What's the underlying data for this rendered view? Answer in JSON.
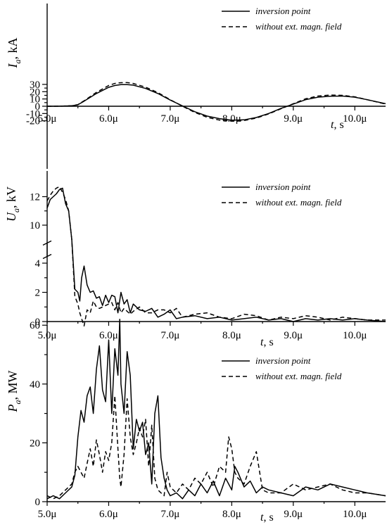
{
  "chart_data": [
    {
      "type": "line",
      "ylabel": "I_a, kA",
      "ylabel_main": "I",
      "ylabel_sub": "a",
      "ylabel_unit": ", kA",
      "xlabel": "t, s",
      "xlabel_italic": "t",
      "xlabel_unit": ", s",
      "x_ticks": [
        "5.0μ",
        "6.0μ",
        "7.0μ",
        "8.0μ",
        "9.0μ",
        "10.0μ"
      ],
      "y_ticks": [
        "-20",
        "-10",
        "0",
        "10",
        "20",
        "30"
      ],
      "xlim": [
        5.0,
        10.5
      ],
      "ylim": [
        -22,
        33
      ],
      "legend_position": "top-right",
      "series": [
        {
          "name": "inversion point",
          "style": "solid",
          "x": [
            5.0,
            5.2,
            5.4,
            5.5,
            5.6,
            5.8,
            6.0,
            6.1,
            6.2,
            6.3,
            6.4,
            6.6,
            6.8,
            7.0,
            7.2,
            7.4,
            7.6,
            7.8,
            8.0,
            8.2,
            8.4,
            8.6,
            8.8,
            9.0,
            9.2,
            9.4,
            9.6,
            9.8,
            10.0,
            10.2,
            10.5
          ],
          "y": [
            0,
            0.1,
            0.6,
            2.0,
            7.0,
            17.5,
            26.0,
            28.5,
            29.8,
            29.7,
            29.0,
            24.5,
            17.5,
            8.5,
            0.5,
            -7.5,
            -13.5,
            -17.0,
            -19.2,
            -18.7,
            -15.5,
            -10.0,
            -3.0,
            3.0,
            9.0,
            12.5,
            13.8,
            14.0,
            12.5,
            9.0,
            3.5
          ]
        },
        {
          "name": "without ext. magn. field",
          "style": "dashed",
          "x": [
            5.0,
            5.2,
            5.4,
            5.5,
            5.6,
            5.8,
            6.0,
            6.1,
            6.2,
            6.3,
            6.4,
            6.6,
            6.8,
            7.0,
            7.2,
            7.4,
            7.6,
            7.8,
            8.0,
            8.2,
            8.4,
            8.6,
            8.8,
            9.0,
            9.2,
            9.4,
            9.6,
            9.8,
            10.0,
            10.2,
            10.5
          ],
          "y": [
            0,
            0.1,
            0.7,
            2.2,
            7.5,
            19.0,
            28.5,
            31.3,
            32.4,
            32.5,
            31.3,
            26.2,
            18.8,
            9.0,
            0.0,
            -8.5,
            -15.2,
            -19.0,
            -20.5,
            -19.6,
            -16.2,
            -10.5,
            -3.5,
            3.5,
            10.2,
            14.0,
            15.4,
            15.0,
            13.0,
            9.0,
            3.0
          ]
        }
      ]
    },
    {
      "type": "line",
      "ylabel": "U_a, kV",
      "ylabel_main": "U",
      "ylabel_sub": "a",
      "ylabel_unit": ", kV",
      "xlabel": "t, s",
      "xlabel_italic": "t",
      "xlabel_unit": ", s",
      "x_ticks": [
        "5.0μ",
        "6.0μ",
        "7.0μ",
        "8.0μ",
        "9.0μ",
        "10.0μ"
      ],
      "y_ticks": [
        "0",
        "2",
        "4",
        "10",
        "12"
      ],
      "y_axis_break": [
        4.6,
        8.6
      ],
      "xlim": [
        5.0,
        10.5
      ],
      "legend_position": "top-right",
      "series": [
        {
          "name": "inversion point",
          "style": "solid",
          "x": [
            5.0,
            5.05,
            5.1,
            5.15,
            5.2,
            5.25,
            5.3,
            5.35,
            5.4,
            5.45,
            5.5,
            5.53,
            5.56,
            5.6,
            5.65,
            5.7,
            5.75,
            5.8,
            5.85,
            5.9,
            5.95,
            6.0,
            6.05,
            6.1,
            6.15,
            6.2,
            6.25,
            6.3,
            6.35,
            6.4,
            6.5,
            6.6,
            6.7,
            6.8,
            6.9,
            7.0,
            7.1,
            7.2,
            7.4,
            7.6,
            7.8,
            8.0,
            8.2,
            8.4,
            8.6,
            8.8,
            9.0,
            9.2,
            9.4,
            9.6,
            9.8,
            10.0,
            10.2,
            10.5
          ],
          "y": [
            11.2,
            11.8,
            12.0,
            12.2,
            12.5,
            12.6,
            11.5,
            11.0,
            9.0,
            5.5,
            2.0,
            1.4,
            3.0,
            3.8,
            2.5,
            2.0,
            2.1,
            1.6,
            1.7,
            1.1,
            1.8,
            1.3,
            1.8,
            1.7,
            0.6,
            2.0,
            1.2,
            1.5,
            0.6,
            1.2,
            0.8,
            0.7,
            0.9,
            0.3,
            0.5,
            0.8,
            0.2,
            0.3,
            0.4,
            0.2,
            0.3,
            0.1,
            0.2,
            0.3,
            0.1,
            0.2,
            0.0,
            0.2,
            0.1,
            0.2,
            0.1,
            0.2,
            0.1,
            0.0
          ]
        },
        {
          "name": "without ext. magn. field",
          "style": "dashed",
          "x": [
            5.0,
            5.05,
            5.1,
            5.15,
            5.2,
            5.25,
            5.3,
            5.35,
            5.4,
            5.45,
            5.5,
            5.53,
            5.56,
            5.6,
            5.65,
            5.7,
            5.75,
            5.8,
            5.85,
            5.9,
            5.95,
            6.0,
            6.05,
            6.1,
            6.15,
            6.2,
            6.25,
            6.3,
            6.35,
            6.4,
            6.5,
            6.6,
            6.7,
            6.8,
            6.9,
            7.0,
            7.1,
            7.2,
            7.4,
            7.6,
            7.8,
            8.0,
            8.2,
            8.4,
            8.6,
            8.8,
            9.0,
            9.2,
            9.4,
            9.6,
            9.8,
            10.0,
            10.2,
            10.5
          ],
          "y": [
            11.7,
            12.1,
            12.4,
            12.6,
            12.7,
            12.3,
            11.8,
            11.0,
            9.0,
            5.0,
            1.2,
            0.6,
            0.2,
            -0.3,
            0.8,
            0.6,
            1.4,
            1.0,
            0.9,
            1.0,
            1.1,
            1.2,
            1.3,
            0.8,
            1.3,
            0.6,
            0.9,
            0.7,
            0.5,
            0.7,
            1.0,
            0.6,
            0.6,
            0.8,
            0.8,
            0.6,
            0.9,
            0.3,
            0.5,
            0.6,
            0.3,
            0.2,
            0.5,
            0.4,
            0.1,
            0.3,
            0.2,
            0.4,
            0.3,
            0.1,
            0.3,
            0.2,
            0.1,
            0.1
          ]
        }
      ]
    },
    {
      "type": "line",
      "ylabel": "P_a, MW",
      "ylabel_main": "P",
      "ylabel_sub": "a",
      "ylabel_unit": ", MW",
      "xlabel": "t, s",
      "xlabel_italic": "t",
      "xlabel_unit": ", s",
      "x_ticks": [
        "5.0μ",
        "6.0μ",
        "7.0μ",
        "8.0μ",
        "9.0μ",
        "10.0μ"
      ],
      "y_ticks": [
        "0",
        "20",
        "40",
        "60"
      ],
      "xlim": [
        5.0,
        10.5
      ],
      "ylim": [
        0,
        66
      ],
      "legend_position": "top-right",
      "series": [
        {
          "name": "inversion point",
          "style": "solid",
          "x": [
            5.0,
            5.1,
            5.2,
            5.3,
            5.4,
            5.45,
            5.5,
            5.55,
            5.6,
            5.65,
            5.7,
            5.75,
            5.8,
            5.85,
            5.9,
            5.95,
            6.0,
            6.05,
            6.1,
            6.15,
            6.18,
            6.2,
            6.25,
            6.3,
            6.35,
            6.4,
            6.45,
            6.5,
            6.55,
            6.6,
            6.65,
            6.7,
            6.75,
            6.8,
            6.85,
            6.9,
            6.95,
            7.0,
            7.1,
            7.2,
            7.3,
            7.4,
            7.5,
            7.6,
            7.7,
            7.8,
            7.9,
            8.0,
            8.05,
            8.1,
            8.2,
            8.3,
            8.4,
            8.5,
            8.6,
            8.8,
            9.0,
            9.2,
            9.4,
            9.6,
            9.8,
            10.0,
            10.2,
            10.5
          ],
          "y": [
            1,
            2,
            1,
            3,
            5,
            9,
            22,
            31,
            27,
            36,
            39,
            30,
            45,
            53,
            38,
            34,
            55,
            30,
            52,
            43,
            62,
            40,
            30,
            51,
            43,
            18,
            28,
            24,
            27,
            16,
            20,
            6,
            30,
            36,
            15,
            8,
            4,
            2,
            3,
            1,
            4,
            2,
            6,
            3,
            7,
            2,
            8,
            4,
            12,
            10,
            5,
            7,
            3,
            5,
            4,
            3,
            2,
            5,
            4,
            6,
            5,
            4,
            3,
            2
          ]
        },
        {
          "name": "without ext. magn. field",
          "style": "dashed",
          "x": [
            5.0,
            5.1,
            5.2,
            5.3,
            5.4,
            5.45,
            5.5,
            5.55,
            5.6,
            5.65,
            5.7,
            5.75,
            5.8,
            5.85,
            5.9,
            5.95,
            6.0,
            6.05,
            6.1,
            6.15,
            6.18,
            6.2,
            6.25,
            6.3,
            6.35,
            6.4,
            6.45,
            6.5,
            6.55,
            6.6,
            6.65,
            6.7,
            6.75,
            6.8,
            6.85,
            6.9,
            6.95,
            7.0,
            7.1,
            7.2,
            7.3,
            7.4,
            7.5,
            7.6,
            7.7,
            7.8,
            7.9,
            7.95,
            8.0,
            8.05,
            8.1,
            8.2,
            8.3,
            8.4,
            8.5,
            8.6,
            8.8,
            9.0,
            9.2,
            9.4,
            9.6,
            9.8,
            10.0,
            10.2,
            10.5
          ],
          "y": [
            2,
            1,
            2,
            4,
            6,
            10,
            12,
            10,
            8,
            13,
            18,
            12,
            21,
            16,
            10,
            17,
            14,
            20,
            36,
            18,
            8,
            5,
            16,
            35,
            22,
            16,
            20,
            25,
            22,
            28,
            12,
            26,
            8,
            4,
            3,
            2,
            10,
            5,
            3,
            6,
            4,
            8,
            6,
            10,
            5,
            12,
            10,
            22,
            18,
            10,
            8,
            6,
            12,
            17,
            4,
            3,
            3,
            6,
            4,
            5,
            6,
            4,
            3,
            3,
            2
          ]
        }
      ]
    }
  ]
}
